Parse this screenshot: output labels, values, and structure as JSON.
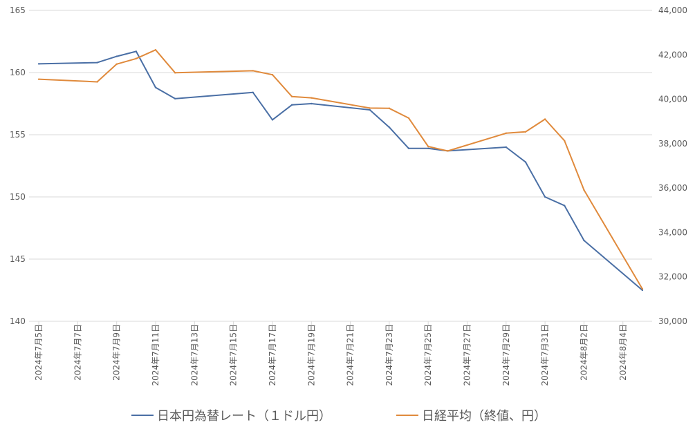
{
  "chart_data": {
    "type": "line",
    "title": "",
    "x_type": "date",
    "x_tick_labels": [
      "2024年7月5日",
      "2024年7月7日",
      "2024年7月9日",
      "2024年7月11日",
      "2024年7月13日",
      "2024年7月15日",
      "2024年7月17日",
      "2024年7月19日",
      "2024年7月21日",
      "2024年7月23日",
      "2024年7月25日",
      "2024年7月27日",
      "2024年7月29日",
      "2024年7月31日",
      "2024年8月2日",
      "2024年8月4日"
    ],
    "x_tick_dates": [
      "2024-07-05",
      "2024-07-07",
      "2024-07-09",
      "2024-07-11",
      "2024-07-13",
      "2024-07-15",
      "2024-07-17",
      "2024-07-19",
      "2024-07-21",
      "2024-07-23",
      "2024-07-25",
      "2024-07-27",
      "2024-07-29",
      "2024-07-31",
      "2024-08-02",
      "2024-08-04"
    ],
    "x_range": [
      "2024-07-05",
      "2024-08-05"
    ],
    "y_left": {
      "min": 140,
      "max": 165,
      "step": 5,
      "tick_labels": [
        "140",
        "145",
        "150",
        "155",
        "160",
        "165"
      ]
    },
    "y_right": {
      "min": 30000,
      "max": 44000,
      "step": 2000,
      "tick_labels": [
        "30,000",
        "32,000",
        "34,000",
        "36,000",
        "38,000",
        "40,000",
        "42,000",
        "44,000"
      ]
    },
    "grid": "horizontal",
    "legend_position": "bottom",
    "series": [
      {
        "name": "日本円為替レート（１ドル円）",
        "axis": "left",
        "color": "#4a6fa5",
        "points": [
          {
            "x": "2024-07-05",
            "y": 160.7
          },
          {
            "x": "2024-07-08",
            "y": 160.8
          },
          {
            "x": "2024-07-09",
            "y": 161.3
          },
          {
            "x": "2024-07-10",
            "y": 161.7
          },
          {
            "x": "2024-07-11",
            "y": 158.8
          },
          {
            "x": "2024-07-12",
            "y": 157.9
          },
          {
            "x": "2024-07-16",
            "y": 158.4
          },
          {
            "x": "2024-07-17",
            "y": 156.2
          },
          {
            "x": "2024-07-18",
            "y": 157.4
          },
          {
            "x": "2024-07-19",
            "y": 157.5
          },
          {
            "x": "2024-07-22",
            "y": 157.0
          },
          {
            "x": "2024-07-23",
            "y": 155.6
          },
          {
            "x": "2024-07-24",
            "y": 153.9
          },
          {
            "x": "2024-07-25",
            "y": 153.9
          },
          {
            "x": "2024-07-26",
            "y": 153.7
          },
          {
            "x": "2024-07-29",
            "y": 154.0
          },
          {
            "x": "2024-07-30",
            "y": 152.8
          },
          {
            "x": "2024-07-31",
            "y": 150.0
          },
          {
            "x": "2024-08-01",
            "y": 149.3
          },
          {
            "x": "2024-08-02",
            "y": 146.5
          },
          {
            "x": "2024-08-05",
            "y": 142.5
          }
        ]
      },
      {
        "name": "日経平均（終値、円）",
        "axis": "right",
        "color": "#e08a3c",
        "points": [
          {
            "x": "2024-07-05",
            "y": 40900
          },
          {
            "x": "2024-07-08",
            "y": 40780
          },
          {
            "x": "2024-07-09",
            "y": 41580
          },
          {
            "x": "2024-07-10",
            "y": 41830
          },
          {
            "x": "2024-07-11",
            "y": 42220
          },
          {
            "x": "2024-07-12",
            "y": 41190
          },
          {
            "x": "2024-07-16",
            "y": 41280
          },
          {
            "x": "2024-07-17",
            "y": 41100
          },
          {
            "x": "2024-07-18",
            "y": 40120
          },
          {
            "x": "2024-07-19",
            "y": 40060
          },
          {
            "x": "2024-07-22",
            "y": 39600
          },
          {
            "x": "2024-07-23",
            "y": 39590
          },
          {
            "x": "2024-07-24",
            "y": 39150
          },
          {
            "x": "2024-07-25",
            "y": 37870
          },
          {
            "x": "2024-07-26",
            "y": 37670
          },
          {
            "x": "2024-07-29",
            "y": 38470
          },
          {
            "x": "2024-07-30",
            "y": 38530
          },
          {
            "x": "2024-07-31",
            "y": 39100
          },
          {
            "x": "2024-08-01",
            "y": 38130
          },
          {
            "x": "2024-08-02",
            "y": 35910
          },
          {
            "x": "2024-08-05",
            "y": 31460
          }
        ]
      }
    ]
  }
}
